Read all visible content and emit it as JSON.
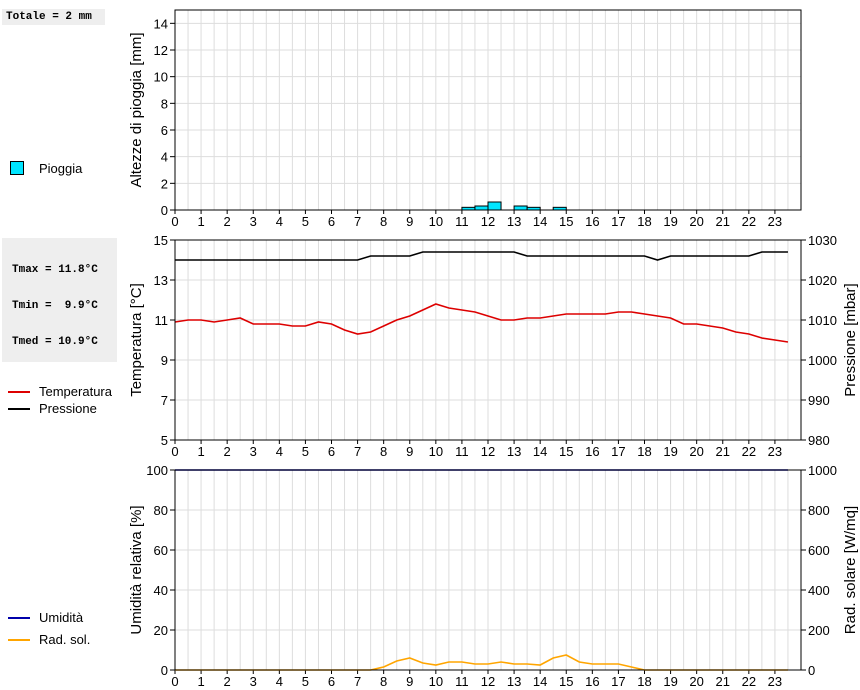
{
  "hours": [
    "0",
    "1",
    "2",
    "3",
    "4",
    "5",
    "6",
    "7",
    "8",
    "9",
    "10",
    "11",
    "12",
    "13",
    "14",
    "15",
    "16",
    "17",
    "18",
    "19",
    "20",
    "21",
    "22",
    "23"
  ],
  "colors": {
    "rain": "#00e5ff",
    "temperature": "#dd0000",
    "pressure": "#000000",
    "humidity": "#0000aa",
    "radiation": "#ffa500",
    "grid": "#dddddd"
  },
  "rain_panel": {
    "summary": "Totale = 2 mm",
    "legend": {
      "rain_label": "Pioggia"
    }
  },
  "temp_panel": {
    "stats": {
      "tmax": "Tmax = 11.8°C",
      "tmin": "Tmin =  9.9°C",
      "tmed": "Tmed = 10.9°C"
    },
    "legend": {
      "temperature_label": "Temperatura",
      "pressure_label": "Pressione"
    }
  },
  "hum_panel": {
    "legend": {
      "humidity_label": "Umidità",
      "radiation_label": "Rad. sol."
    }
  },
  "chart_data": [
    {
      "type": "bar",
      "ylabel": "Altezze di pioggia [mm]",
      "xlim": [
        0,
        24
      ],
      "ylim": [
        0,
        15
      ],
      "yticks": [
        0,
        2,
        4,
        6,
        8,
        10,
        12,
        14
      ],
      "grid": true,
      "series": [
        {
          "name": "Pioggia",
          "bar_width_hours": 0.5,
          "x": [
            11.25,
            11.75,
            12.25,
            13.25,
            13.75,
            14.75
          ],
          "values": [
            0.2,
            0.3,
            0.6,
            0.3,
            0.2,
            0.2
          ]
        }
      ]
    },
    {
      "type": "line",
      "ylabel": "Temperatura [°C]",
      "y2label": "Pressione [mbar]",
      "xlim": [
        0,
        24
      ],
      "ylim": [
        5,
        15
      ],
      "yticks": [
        5,
        7,
        9,
        11,
        13,
        15
      ],
      "y2lim": [
        980,
        1030
      ],
      "y2ticks": [
        980,
        990,
        1000,
        1010,
        1020,
        1030
      ],
      "grid": true,
      "series": [
        {
          "name": "Temperatura",
          "axis": "left",
          "x": [
            0,
            0.5,
            1,
            1.5,
            2,
            2.5,
            3,
            3.5,
            4,
            4.5,
            5,
            5.5,
            6,
            6.5,
            7,
            7.5,
            8,
            8.5,
            9,
            9.5,
            10,
            10.5,
            11,
            11.5,
            12,
            12.5,
            13,
            13.5,
            14,
            14.5,
            15,
            15.5,
            16,
            16.5,
            17,
            17.5,
            18,
            18.5,
            19,
            19.5,
            20,
            20.5,
            21,
            21.5,
            22,
            22.5,
            23,
            23.5
          ],
          "values": [
            10.9,
            11.0,
            11.0,
            10.9,
            11.0,
            11.1,
            10.8,
            10.8,
            10.8,
            10.7,
            10.7,
            10.9,
            10.8,
            10.5,
            10.3,
            10.4,
            10.7,
            11.0,
            11.2,
            11.5,
            11.8,
            11.6,
            11.5,
            11.4,
            11.2,
            11.0,
            11.0,
            11.1,
            11.1,
            11.2,
            11.3,
            11.3,
            11.3,
            11.3,
            11.4,
            11.4,
            11.3,
            11.2,
            11.1,
            10.8,
            10.8,
            10.7,
            10.6,
            10.4,
            10.3,
            10.1,
            10.0,
            9.9
          ]
        },
        {
          "name": "Pressione",
          "axis": "right",
          "x": [
            0,
            0.5,
            1,
            1.5,
            2,
            2.5,
            3,
            3.5,
            4,
            4.5,
            5,
            5.5,
            6,
            6.5,
            7,
            7.5,
            8,
            8.5,
            9,
            9.5,
            10,
            10.5,
            11,
            11.5,
            12,
            12.5,
            13,
            13.5,
            14,
            14.5,
            15,
            15.5,
            16,
            16.5,
            17,
            17.5,
            18,
            18.5,
            19,
            19.5,
            20,
            20.5,
            21,
            21.5,
            22,
            22.5,
            23,
            23.5
          ],
          "values": [
            1025,
            1025,
            1025,
            1025,
            1025,
            1025,
            1025,
            1025,
            1025,
            1025,
            1025,
            1025,
            1025,
            1025,
            1025,
            1026,
            1026,
            1026,
            1026,
            1027,
            1027,
            1027,
            1027,
            1027,
            1027,
            1027,
            1027,
            1026,
            1026,
            1026,
            1026,
            1026,
            1026,
            1026,
            1026,
            1026,
            1026,
            1025,
            1026,
            1026,
            1026,
            1026,
            1026,
            1026,
            1026,
            1027,
            1027,
            1027
          ]
        }
      ]
    },
    {
      "type": "line",
      "ylabel": "Umidità relativa [%]",
      "y2label": "Rad. solare [W/mq]",
      "xlim": [
        0,
        24
      ],
      "ylim": [
        0,
        100
      ],
      "yticks": [
        0,
        20,
        40,
        60,
        80,
        100
      ],
      "y2lim": [
        0,
        1000
      ],
      "y2ticks": [
        0,
        200,
        400,
        600,
        800,
        1000
      ],
      "grid": true,
      "series": [
        {
          "name": "Umidità",
          "axis": "left",
          "x": [
            0,
            23.5
          ],
          "values": [
            100,
            100
          ]
        },
        {
          "name": "Rad. sol.",
          "axis": "right",
          "x": [
            0,
            7.5,
            8,
            8.5,
            9,
            9.5,
            10,
            10.5,
            11,
            11.5,
            12,
            12.5,
            13,
            13.5,
            14,
            14.5,
            15,
            15.5,
            16,
            16.5,
            17,
            17.5,
            18,
            23.5
          ],
          "values": [
            0,
            0,
            15,
            45,
            60,
            35,
            25,
            40,
            40,
            30,
            30,
            40,
            30,
            30,
            25,
            60,
            75,
            40,
            30,
            30,
            30,
            15,
            0,
            0
          ]
        }
      ]
    }
  ]
}
